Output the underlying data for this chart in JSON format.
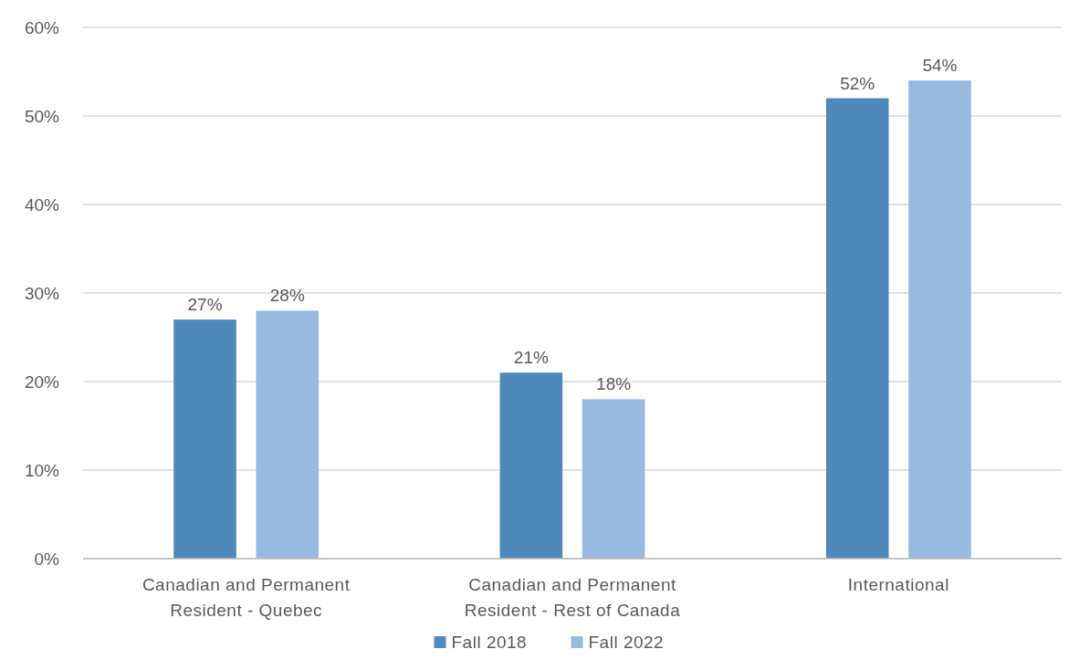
{
  "chart_data": {
    "type": "bar",
    "categories": [
      "Canadian and Permanent Resident - Quebec",
      "Canadian and Permanent Resident - Rest of Canada",
      "International"
    ],
    "series": [
      {
        "name": "Fall 2018",
        "color": "#4f89bc",
        "values": [
          27,
          21,
          52
        ],
        "value_labels": [
          "27%",
          "21%",
          "52%"
        ]
      },
      {
        "name": "Fall 2022",
        "color": "#98b9e0",
        "values": [
          28,
          18,
          54
        ],
        "value_labels": [
          "28%",
          "18%",
          "54%"
        ]
      }
    ],
    "ylim": [
      0,
      60
    ],
    "yticks": [
      {
        "value": 0,
        "label": "0%"
      },
      {
        "value": 10,
        "label": "10%"
      },
      {
        "value": 20,
        "label": "20%"
      },
      {
        "value": 30,
        "label": "30%"
      },
      {
        "value": 40,
        "label": "40%"
      },
      {
        "value": 50,
        "label": "50%"
      },
      {
        "value": 60,
        "label": "60%"
      }
    ],
    "grid": "y",
    "legend": "bottom"
  }
}
